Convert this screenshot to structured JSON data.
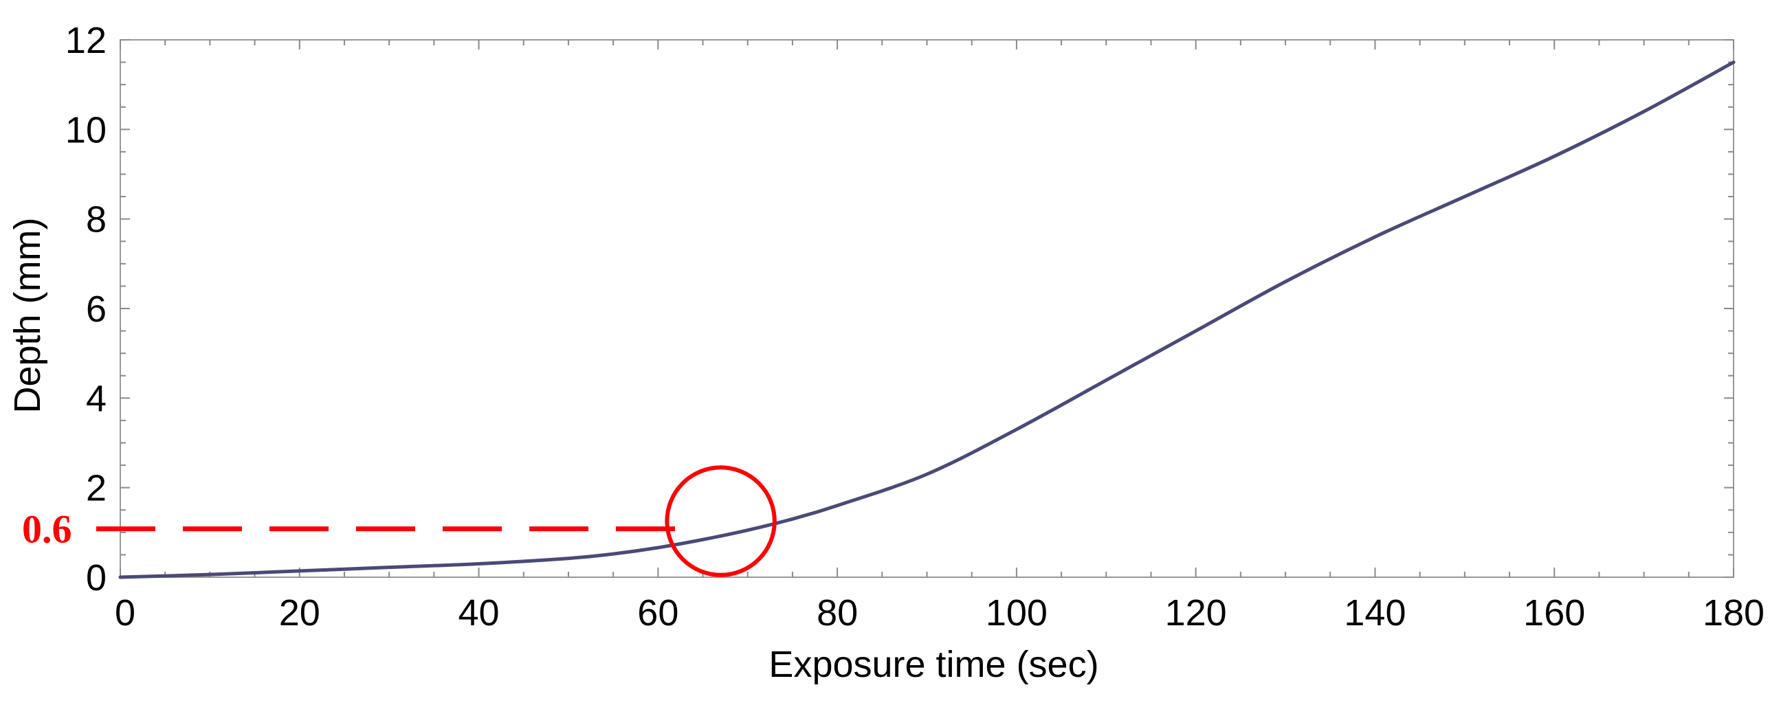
{
  "chart_data": {
    "type": "line",
    "xlabel": "Exposure time (sec)",
    "ylabel": "Depth (mm)",
    "xlim": [
      0,
      180
    ],
    "ylim": [
      0,
      12
    ],
    "x_ticks": [
      "0",
      "20",
      "40",
      "60",
      "80",
      "100",
      "120",
      "140",
      "160",
      "180"
    ],
    "y_ticks": [
      "0",
      "2",
      "4",
      "6",
      "8",
      "10",
      "12"
    ],
    "grid": false,
    "series": [
      {
        "color": "#4a4a78",
        "x": [
          0,
          10,
          20,
          30,
          40,
          50,
          55,
          60,
          65,
          70,
          75,
          80,
          90,
          100,
          110,
          120,
          130,
          140,
          150,
          160,
          170,
          180
        ],
        "y": [
          0.0,
          0.06,
          0.14,
          0.22,
          0.3,
          0.42,
          0.52,
          0.66,
          0.84,
          1.05,
          1.3,
          1.6,
          2.3,
          3.3,
          4.4,
          5.5,
          6.6,
          7.6,
          8.5,
          9.4,
          10.4,
          11.5
        ]
      }
    ],
    "annotation": {
      "label": "0.6",
      "color": "#ff0000",
      "line_y": 1.08,
      "line_x_end": 64,
      "circle_center": [
        67,
        1.25
      ],
      "circle_radius_x": 6
    }
  }
}
